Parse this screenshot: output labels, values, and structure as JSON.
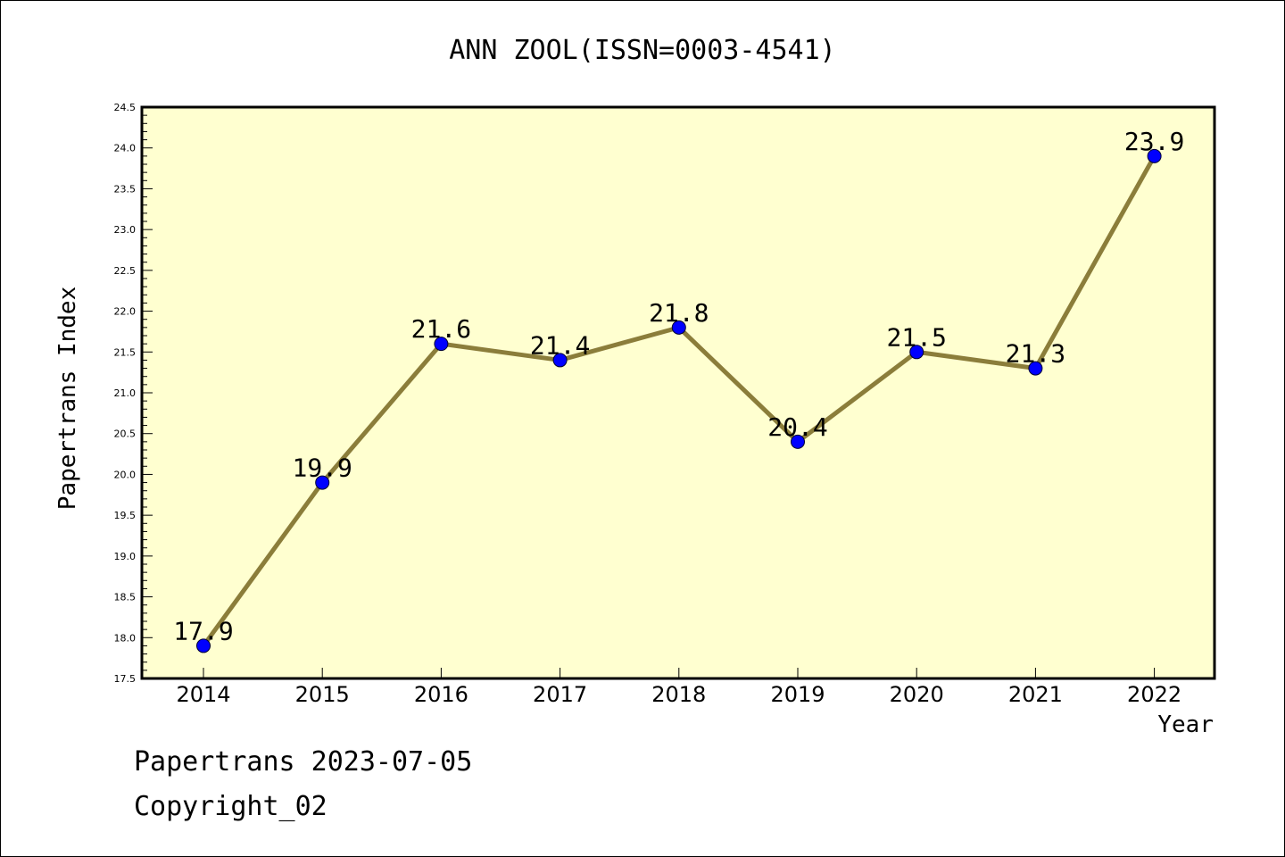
{
  "chart_data": {
    "type": "line",
    "title": "ANN ZOOL(ISSN=0003-4541)",
    "xlabel": "Year",
    "ylabel": "Papertrans Index",
    "categories": [
      "2014",
      "2015",
      "2016",
      "2017",
      "2018",
      "2019",
      "2020",
      "2021",
      "2022"
    ],
    "series": [
      {
        "values": [
          17.9,
          19.9,
          21.6,
          21.4,
          21.8,
          20.4,
          21.5,
          21.3,
          23.9
        ],
        "labels": [
          "17.9",
          "19.9",
          "21.6",
          "21.4",
          "21.8",
          "20.4",
          "21.5",
          "21.3",
          "23.9"
        ],
        "line_color": "#8b7d3a",
        "marker_color": "#0000ff"
      }
    ],
    "ylim": [
      17.5,
      24.5
    ],
    "yticks": [
      "17.5",
      "18.0",
      "18.5",
      "19.0",
      "19.5",
      "20.0",
      "20.5",
      "21.0",
      "21.5",
      "22.0",
      "22.5",
      "23.0",
      "23.5",
      "24.0",
      "24.5"
    ],
    "grid": false,
    "plot_background": "#ffffd0"
  },
  "footer": {
    "line1": "Papertrans 2023-07-05",
    "line2": "Copyright_02"
  }
}
